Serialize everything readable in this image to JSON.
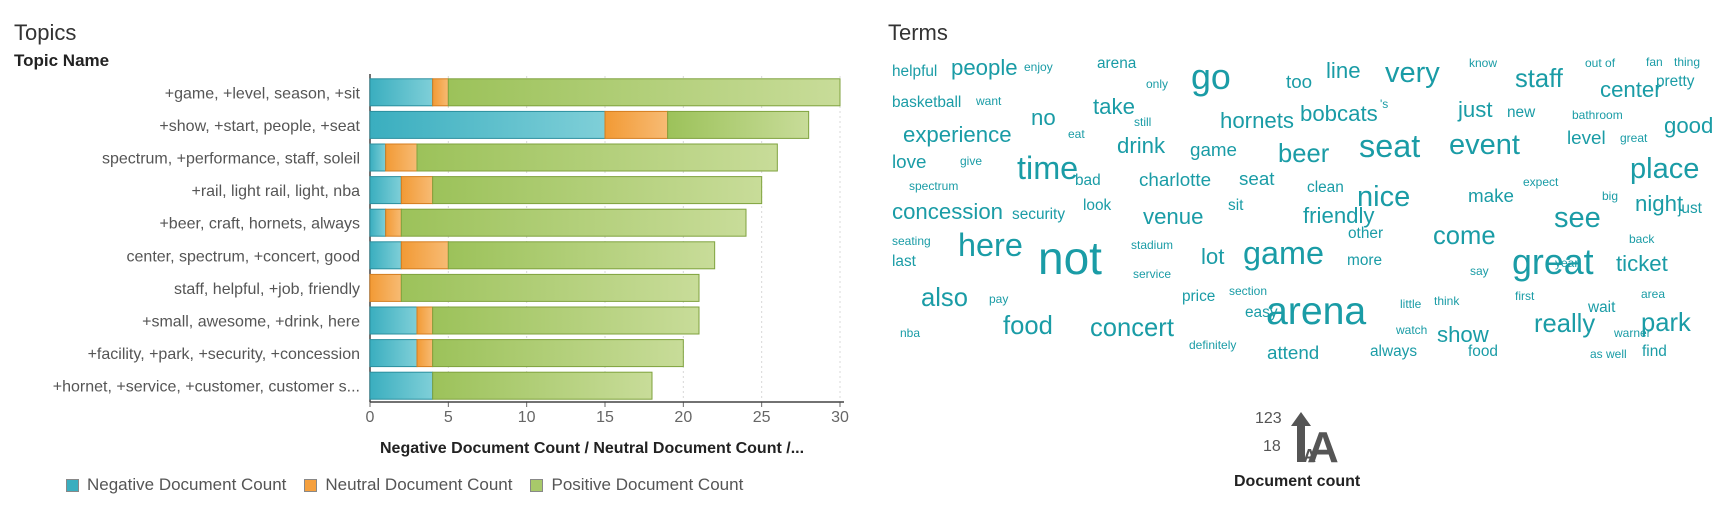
{
  "left_panel": {
    "title": "Topics",
    "subtitle": "Topic Name"
  },
  "right_panel": {
    "title": "Terms",
    "size_legend": {
      "max": "123",
      "min": "18",
      "label": "Document count"
    }
  },
  "colors": {
    "negative": "#3aaebf",
    "neutral": "#f5a03e",
    "positive": "#a8c96a",
    "term_text": "#1a9ca6"
  },
  "chart_data": [
    {
      "type": "bar",
      "orientation": "horizontal",
      "stacked": true,
      "categories": [
        "+game, +level, season, +sit",
        "+show, +start, people, +seat",
        "spectrum, +performance, staff, soleil",
        "+rail, light rail, light, nba",
        "+beer, craft, hornets, always",
        "center, spectrum, +concert, good",
        "staff, helpful, +job, friendly",
        "+small, awesome, +drink, here",
        "+facility, +park, +security, +concession",
        "+hornet, +service, +customer, customer s..."
      ],
      "series": [
        {
          "name": "Negative Document Count",
          "values": [
            4,
            15,
            1,
            2,
            1,
            2,
            0,
            3,
            3,
            4
          ]
        },
        {
          "name": "Neutral Document Count",
          "values": [
            1,
            4,
            2,
            2,
            1,
            3,
            2,
            1,
            1,
            0
          ]
        },
        {
          "name": "Positive Document Count",
          "values": [
            25,
            9,
            23,
            21,
            22,
            17,
            19,
            17,
            16,
            14
          ]
        }
      ],
      "xlabel": "Negative Document Count / Neutral Document Count /...",
      "ylabel": "Topic Name",
      "xlim": [
        0,
        30
      ],
      "xticks": [
        "0",
        "5",
        "10",
        "15",
        "20",
        "25",
        "30"
      ],
      "grid": true,
      "legend_position": "bottom"
    },
    {
      "type": "wordcloud",
      "words": [
        {
          "text": "helpful",
          "weight": 1
        },
        {
          "text": "people",
          "weight": 3
        },
        {
          "text": "enjoy",
          "weight": 0
        },
        {
          "text": "arena",
          "weight": 1
        },
        {
          "text": "only",
          "weight": 0
        },
        {
          "text": "go",
          "weight": 7
        },
        {
          "text": "too",
          "weight": 2
        },
        {
          "text": "line",
          "weight": 3
        },
        {
          "text": "very",
          "weight": 5
        },
        {
          "text": "know",
          "weight": 0
        },
        {
          "text": "staff",
          "weight": 4
        },
        {
          "text": "out of",
          "weight": 0
        },
        {
          "text": "fan",
          "weight": 0
        },
        {
          "text": "thing",
          "weight": 0
        },
        {
          "text": "center",
          "weight": 3
        },
        {
          "text": "pretty",
          "weight": 1
        },
        {
          "text": "basketball",
          "weight": 1
        },
        {
          "text": "want",
          "weight": 0
        },
        {
          "text": "take",
          "weight": 3
        },
        {
          "text": "no",
          "weight": 3
        },
        {
          "text": "still",
          "weight": 0
        },
        {
          "text": "hornets",
          "weight": 3
        },
        {
          "text": "bobcats",
          "weight": 3
        },
        {
          "text": "'s",
          "weight": 0
        },
        {
          "text": "just",
          "weight": 3
        },
        {
          "text": "new",
          "weight": 1
        },
        {
          "text": "bathroom",
          "weight": 0
        },
        {
          "text": "good",
          "weight": 3
        },
        {
          "text": "experience",
          "weight": 3
        },
        {
          "text": "eat",
          "weight": 0
        },
        {
          "text": "drink",
          "weight": 3
        },
        {
          "text": "game",
          "weight": 2
        },
        {
          "text": "beer",
          "weight": 4
        },
        {
          "text": "seat",
          "weight": 6
        },
        {
          "text": "event",
          "weight": 5
        },
        {
          "text": "level",
          "weight": 2
        },
        {
          "text": "great",
          "weight": 0
        },
        {
          "text": "love",
          "weight": 2
        },
        {
          "text": "give",
          "weight": 0
        },
        {
          "text": "time",
          "weight": 6
        },
        {
          "text": "place",
          "weight": 5
        },
        {
          "text": "spectrum",
          "weight": 0
        },
        {
          "text": "bad",
          "weight": 1
        },
        {
          "text": "charlotte",
          "weight": 2
        },
        {
          "text": "seat",
          "weight": 2
        },
        {
          "text": "clean",
          "weight": 1
        },
        {
          "text": "nice",
          "weight": 5
        },
        {
          "text": "make",
          "weight": 2
        },
        {
          "text": "expect",
          "weight": 0
        },
        {
          "text": "concession",
          "weight": 3
        },
        {
          "text": "security",
          "weight": 1
        },
        {
          "text": "look",
          "weight": 1
        },
        {
          "text": "sit",
          "weight": 1
        },
        {
          "text": "venue",
          "weight": 3
        },
        {
          "text": "friendly",
          "weight": 3
        },
        {
          "text": "big",
          "weight": 0
        },
        {
          "text": "night",
          "weight": 3
        },
        {
          "text": "just",
          "weight": 1
        },
        {
          "text": "see",
          "weight": 5
        },
        {
          "text": "seating",
          "weight": 0
        },
        {
          "text": "here",
          "weight": 6
        },
        {
          "text": "other",
          "weight": 1
        },
        {
          "text": "come",
          "weight": 4
        },
        {
          "text": "stadium",
          "weight": 0
        },
        {
          "text": "lot",
          "weight": 3
        },
        {
          "text": "game",
          "weight": 6
        },
        {
          "text": "back",
          "weight": 0
        },
        {
          "text": "last",
          "weight": 1
        },
        {
          "text": "not",
          "weight": 10
        },
        {
          "text": "more",
          "weight": 1
        },
        {
          "text": "great",
          "weight": 7
        },
        {
          "text": "year",
          "weight": 0
        },
        {
          "text": "ticket",
          "weight": 3
        },
        {
          "text": "service",
          "weight": 0
        },
        {
          "text": "say",
          "weight": 0
        },
        {
          "text": "also",
          "weight": 4
        },
        {
          "text": "price",
          "weight": 1
        },
        {
          "text": "section",
          "weight": 0
        },
        {
          "text": "pay",
          "weight": 0
        },
        {
          "text": "arena",
          "weight": 8
        },
        {
          "text": "think",
          "weight": 0
        },
        {
          "text": "first",
          "weight": 0
        },
        {
          "text": "area",
          "weight": 0
        },
        {
          "text": "easy",
          "weight": 1
        },
        {
          "text": "little",
          "weight": 0
        },
        {
          "text": "wait",
          "weight": 1
        },
        {
          "text": "food",
          "weight": 4
        },
        {
          "text": "concert",
          "weight": 4
        },
        {
          "text": "really",
          "weight": 4
        },
        {
          "text": "park",
          "weight": 4
        },
        {
          "text": "nba",
          "weight": 0
        },
        {
          "text": "watch",
          "weight": 0
        },
        {
          "text": "show",
          "weight": 3
        },
        {
          "text": "warner",
          "weight": 0
        },
        {
          "text": "definitely",
          "weight": 0
        },
        {
          "text": "attend",
          "weight": 2
        },
        {
          "text": "always",
          "weight": 1
        },
        {
          "text": "food",
          "weight": 1
        },
        {
          "text": "as well",
          "weight": 0
        },
        {
          "text": "find",
          "weight": 1
        }
      ]
    }
  ]
}
